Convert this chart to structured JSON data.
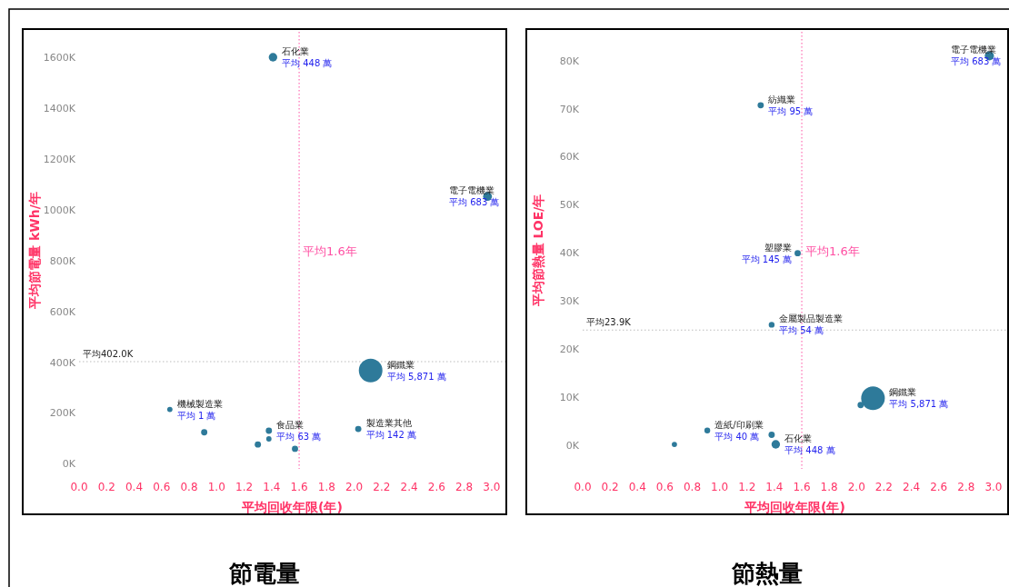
{
  "chart_data": [
    {
      "type": "bubble",
      "title": "節電量",
      "xlabel": "平均回收年限(年)",
      "ylabel": "平均節電量 kWh/年",
      "x": [
        1.41,
        2.97,
        2.12,
        0.66,
        0.91,
        1.38,
        1.38,
        1.3,
        1.57,
        2.03
      ],
      "values": [
        1600,
        1052,
        367,
        214,
        124,
        130,
        98,
        76,
        59,
        137
      ],
      "sizes": [
        0.13,
        0.14,
        1,
        0.05,
        0.07,
        0.07,
        0.05,
        0.07,
        0.07,
        0.07
      ],
      "color": "#2e7a9a",
      "xlim": [
        0,
        3.1
      ],
      "xticks": [
        {
          "value": 0,
          "label": "0.0"
        },
        {
          "value": 0.2,
          "label": "0.2"
        },
        {
          "value": 0.4,
          "label": "0.4"
        },
        {
          "value": 0.6,
          "label": "0.6"
        },
        {
          "value": 0.8,
          "label": "0.8"
        },
        {
          "value": 1,
          "label": "1.0"
        },
        {
          "value": 1.2,
          "label": "1.2"
        },
        {
          "value": 1.4,
          "label": "1.4"
        },
        {
          "value": 1.6,
          "label": "1.6"
        },
        {
          "value": 1.8,
          "label": "1.8"
        },
        {
          "value": 2,
          "label": "2.0"
        },
        {
          "value": 2.2,
          "label": "2.2"
        },
        {
          "value": 2.4,
          "label": "2.4"
        },
        {
          "value": 2.6,
          "label": "2.6"
        },
        {
          "value": 2.8,
          "label": "2.8"
        },
        {
          "value": 3,
          "label": "3.0"
        }
      ],
      "ylim": [
        -20,
        1700
      ],
      "yticks": [
        {
          "value": 0,
          "label": "0K"
        },
        {
          "value": 200,
          "label": "200K"
        },
        {
          "value": 400,
          "label": "400K"
        },
        {
          "value": 600,
          "label": "600K"
        },
        {
          "value": 800,
          "label": "800K"
        },
        {
          "value": 1000,
          "label": "1000K"
        },
        {
          "value": 1200,
          "label": "1200K"
        },
        {
          "value": 1400,
          "label": "1400K"
        },
        {
          "value": 1600,
          "label": "1600K"
        }
      ],
      "ref_lines": [
        {
          "axis": "x",
          "value": 1.6,
          "label": "平均1.6年",
          "color": "#ff4fa3",
          "line_style": "dotted"
        },
        {
          "axis": "y",
          "value": 402,
          "label": "平均402.0K",
          "color": "#bbbbbb",
          "line_style": "dotted"
        }
      ],
      "annotations": [
        {
          "text": "石化業",
          "x": 1.41,
          "y": 1600
        },
        {
          "text": "平均 448 萬",
          "x": 1.41,
          "y": 1600
        },
        {
          "text": "電子電機業",
          "x": 2.97,
          "y": 1052
        },
        {
          "text": "平均 683 萬",
          "x": 2.97,
          "y": 1052
        },
        {
          "text": "鋼鐵業",
          "x": 2.12,
          "y": 367
        },
        {
          "text": "平均 5,871 萬",
          "x": 2.12,
          "y": 367
        },
        {
          "text": "機械製造業",
          "x": 0.66,
          "y": 214
        },
        {
          "text": "平均 1 萬",
          "x": 0.66,
          "y": 214
        },
        {
          "text": "食品業",
          "x": 1.38,
          "y": 130
        },
        {
          "text": "平均 63 萬",
          "x": 1.38,
          "y": 130
        },
        {
          "text": "製造業其他",
          "x": 2.03,
          "y": 137
        },
        {
          "text": "平均 142 萬",
          "x": 2.03,
          "y": 137
        }
      ]
    },
    {
      "type": "bubble",
      "title": "節熱量",
      "xlabel": "平均回收年限(年)",
      "ylabel": "平均節熱量 LOE/年",
      "x": [
        2.97,
        1.3,
        1.57,
        1.38,
        2.12,
        2.03,
        0.91,
        1.38,
        1.41,
        0.67
      ],
      "values": [
        81.0,
        70.7,
        39.9,
        25.0,
        9.7,
        8.3,
        3.0,
        2.1,
        0.1,
        0.1
      ],
      "sizes": [
        0.15,
        0.07,
        0.07,
        0.06,
        1,
        0.07,
        0.06,
        0.07,
        0.13,
        0.05
      ],
      "color": "#2e7a9a",
      "xlim": [
        0,
        3.1
      ],
      "xticks": [
        {
          "value": 0,
          "label": "0.0"
        },
        {
          "value": 0.2,
          "label": "0.2"
        },
        {
          "value": 0.4,
          "label": "0.4"
        },
        {
          "value": 0.6,
          "label": "0.6"
        },
        {
          "value": 0.8,
          "label": "0.8"
        },
        {
          "value": 1,
          "label": "1.0"
        },
        {
          "value": 1.2,
          "label": "1.2"
        },
        {
          "value": 1.4,
          "label": "1.4"
        },
        {
          "value": 1.6,
          "label": "1.6"
        },
        {
          "value": 1.8,
          "label": "1.8"
        },
        {
          "value": 2,
          "label": "2.0"
        },
        {
          "value": 2.2,
          "label": "2.2"
        },
        {
          "value": 2.4,
          "label": "2.4"
        },
        {
          "value": 2.6,
          "label": "2.6"
        },
        {
          "value": 2.8,
          "label": "2.8"
        },
        {
          "value": 3,
          "label": "3.0"
        }
      ],
      "ylim": [
        -5,
        86
      ],
      "yticks": [
        {
          "value": 0,
          "label": "0K"
        },
        {
          "value": 10,
          "label": "10K"
        },
        {
          "value": 20,
          "label": "20K"
        },
        {
          "value": 30,
          "label": "30K"
        },
        {
          "value": 40,
          "label": "40K"
        },
        {
          "value": 50,
          "label": "50K"
        },
        {
          "value": 60,
          "label": "60K"
        },
        {
          "value": 70,
          "label": "70K"
        },
        {
          "value": 80,
          "label": "80K"
        }
      ],
      "ref_lines": [
        {
          "axis": "x",
          "value": 1.6,
          "label": "平均1.6年",
          "color": "#ff4fa3",
          "line_style": "dotted"
        },
        {
          "axis": "y",
          "value": 23.9,
          "label": "平均23.9K",
          "color": "#bbbbbb",
          "line_style": "dotted"
        }
      ],
      "annotations": [
        {
          "text": "電子電機業",
          "x": 2.97,
          "y": 81.0
        },
        {
          "text": "平均 683 萬",
          "x": 2.97,
          "y": 81.0
        },
        {
          "text": "紡織業",
          "x": 1.3,
          "y": 70.7
        },
        {
          "text": "平均 95 萬",
          "x": 1.3,
          "y": 70.7
        },
        {
          "text": "塑膠業",
          "x": 1.57,
          "y": 39.9
        },
        {
          "text": "平均 145 萬",
          "x": 1.57,
          "y": 39.9
        },
        {
          "text": "金屬製品製造業",
          "x": 1.38,
          "y": 25.0
        },
        {
          "text": "平均 54 萬",
          "x": 1.38,
          "y": 25.0
        },
        {
          "text": "鋼鐵業",
          "x": 2.12,
          "y": 9.7
        },
        {
          "text": "平均 5,871 萬",
          "x": 2.12,
          "y": 9.7
        },
        {
          "text": "造紙/印刷業",
          "x": 0.91,
          "y": 3.0
        },
        {
          "text": "平均 40 萬",
          "x": 0.91,
          "y": 3.0
        },
        {
          "text": "石化業",
          "x": 1.41,
          "y": 0.1
        },
        {
          "text": "平均 448 萬",
          "x": 1.41,
          "y": 0.1
        }
      ]
    }
  ]
}
